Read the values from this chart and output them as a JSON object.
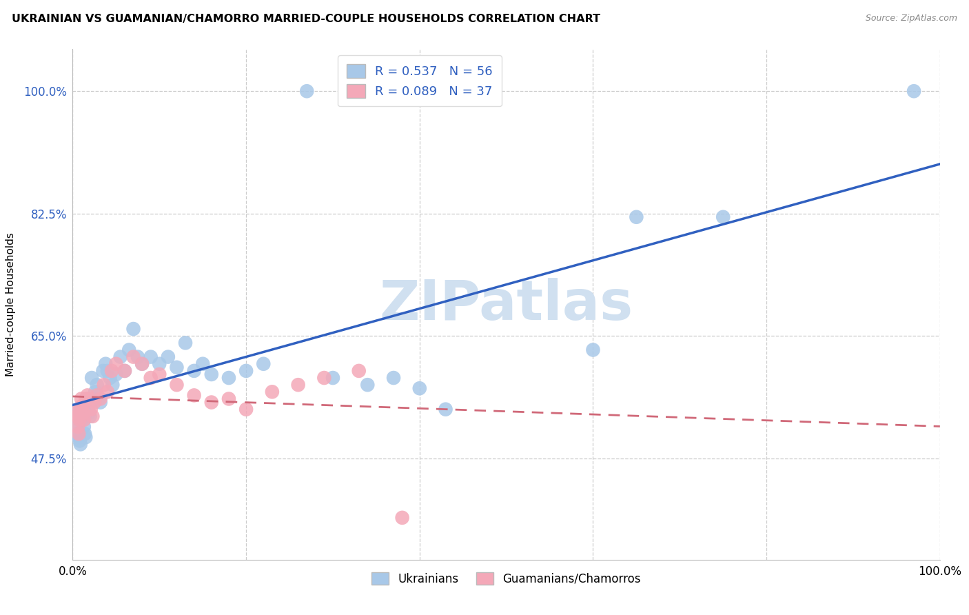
{
  "title": "UKRAINIAN VS GUAMANIAN/CHAMORRO MARRIED-COUPLE HOUSEHOLDS CORRELATION CHART",
  "source": "Source: ZipAtlas.com",
  "ylabel": "Married-couple Households",
  "legend_label_blue": "Ukrainians",
  "legend_label_pink": "Guamanians/Chamorros",
  "R_blue": 0.537,
  "N_blue": 56,
  "R_pink": 0.089,
  "N_pink": 37,
  "blue_color": "#a8c8e8",
  "pink_color": "#f4a8b8",
  "blue_line_color": "#3060c0",
  "pink_line_color": "#d06878",
  "watermark": "ZIPatlas",
  "xlim": [
    0.0,
    1.0
  ],
  "ylim": [
    0.33,
    1.06
  ],
  "yticks": [
    0.475,
    0.65,
    0.825,
    1.0
  ],
  "ytick_labels": [
    "47.5%",
    "65.0%",
    "82.5%",
    "100.0%"
  ],
  "xtick_positions": [
    0.0,
    0.2,
    0.4,
    0.6,
    0.8,
    1.0
  ],
  "xtick_labels": [
    "0.0%",
    "",
    "",
    "",
    "",
    "100.0%"
  ],
  "blue_x": [
    0.003,
    0.005,
    0.006,
    0.007,
    0.008,
    0.009,
    0.01,
    0.011,
    0.012,
    0.013,
    0.014,
    0.015,
    0.016,
    0.017,
    0.018,
    0.019,
    0.02,
    0.022,
    0.024,
    0.026,
    0.028,
    0.03,
    0.032,
    0.035,
    0.038,
    0.04,
    0.043,
    0.046,
    0.05,
    0.055,
    0.06,
    0.065,
    0.07,
    0.075,
    0.08,
    0.09,
    0.1,
    0.11,
    0.12,
    0.13,
    0.14,
    0.15,
    0.16,
    0.18,
    0.2,
    0.22,
    0.27,
    0.3,
    0.34,
    0.37,
    0.4,
    0.43,
    0.6,
    0.65,
    0.75,
    0.97
  ],
  "blue_y": [
    0.54,
    0.52,
    0.51,
    0.505,
    0.5,
    0.495,
    0.53,
    0.545,
    0.535,
    0.52,
    0.51,
    0.505,
    0.54,
    0.56,
    0.55,
    0.54,
    0.535,
    0.59,
    0.56,
    0.57,
    0.58,
    0.56,
    0.555,
    0.6,
    0.61,
    0.6,
    0.59,
    0.58,
    0.595,
    0.62,
    0.6,
    0.63,
    0.66,
    0.62,
    0.61,
    0.62,
    0.61,
    0.62,
    0.605,
    0.64,
    0.6,
    0.61,
    0.595,
    0.59,
    0.6,
    0.61,
    1.0,
    0.59,
    0.58,
    0.59,
    0.575,
    0.545,
    0.63,
    0.82,
    0.82,
    1.0
  ],
  "pink_x": [
    0.003,
    0.005,
    0.006,
    0.007,
    0.008,
    0.009,
    0.01,
    0.011,
    0.012,
    0.013,
    0.015,
    0.017,
    0.019,
    0.021,
    0.023,
    0.025,
    0.028,
    0.032,
    0.036,
    0.04,
    0.045,
    0.05,
    0.06,
    0.07,
    0.08,
    0.09,
    0.1,
    0.12,
    0.14,
    0.16,
    0.18,
    0.2,
    0.23,
    0.26,
    0.29,
    0.33,
    0.38
  ],
  "pink_y": [
    0.54,
    0.535,
    0.52,
    0.51,
    0.53,
    0.545,
    0.56,
    0.55,
    0.54,
    0.53,
    0.56,
    0.565,
    0.56,
    0.545,
    0.535,
    0.555,
    0.565,
    0.56,
    0.58,
    0.57,
    0.6,
    0.61,
    0.6,
    0.62,
    0.61,
    0.59,
    0.595,
    0.58,
    0.565,
    0.555,
    0.56,
    0.545,
    0.57,
    0.58,
    0.59,
    0.6,
    0.39
  ]
}
